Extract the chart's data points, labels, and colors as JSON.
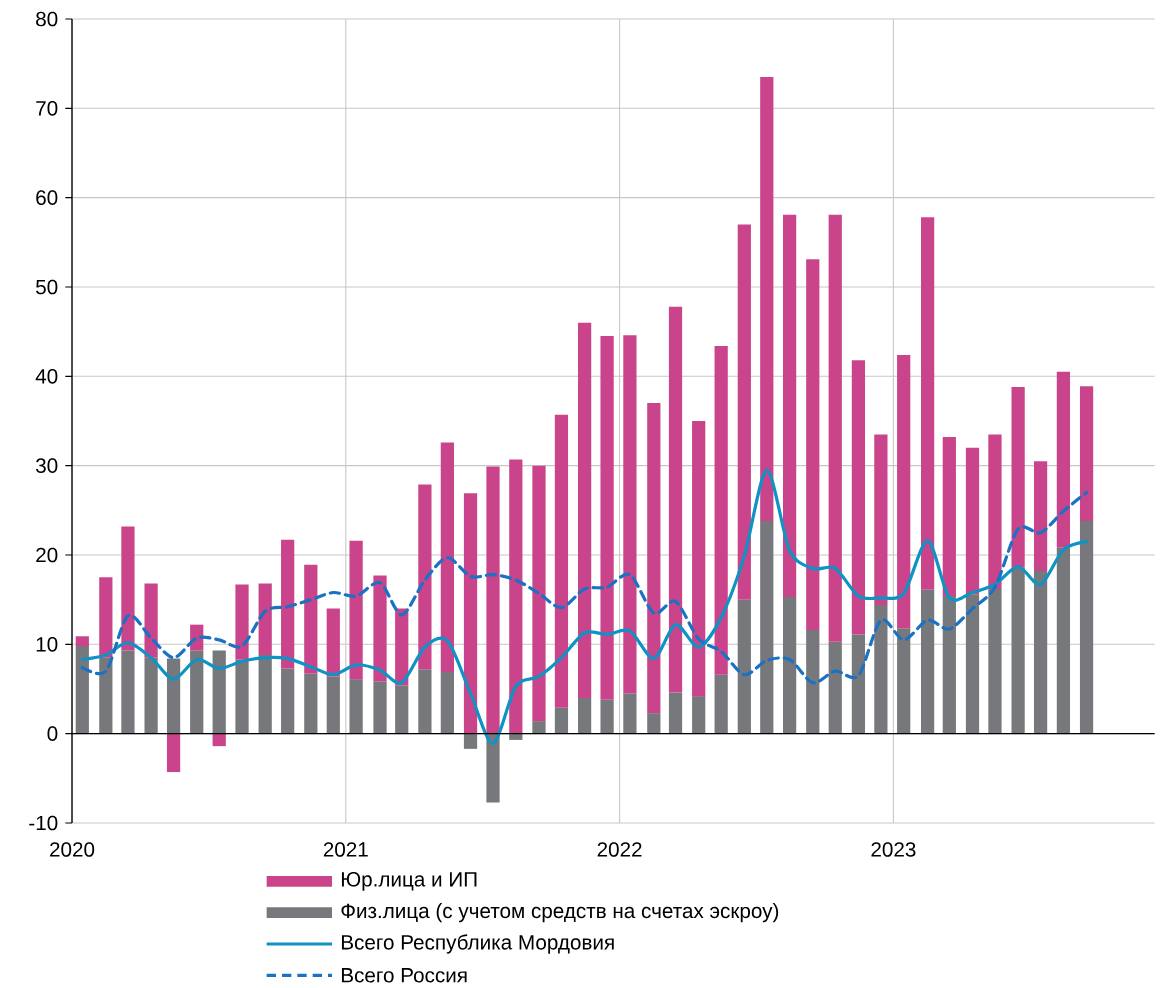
{
  "chart_data": {
    "type": "bar",
    "stacked": true,
    "grid": true,
    "legend": "bottom",
    "x": [
      "2020-01-15",
      "2020-02-15",
      "2020-03-15",
      "2020-04-15",
      "2020-05-15",
      "2020-06-15",
      "2020-07-15",
      "2020-08-15",
      "2020-09-15",
      "2020-10-15",
      "2020-11-15",
      "2020-12-15",
      "2021-01-15",
      "2021-02-15",
      "2021-03-15",
      "2021-04-15",
      "2021-05-15",
      "2021-06-15",
      "2021-07-15",
      "2021-08-15",
      "2021-09-15",
      "2021-10-15",
      "2021-11-15",
      "2021-12-15",
      "2022-01-15",
      "2022-02-15",
      "2022-03-15",
      "2022-04-15",
      "2022-05-15",
      "2022-06-15",
      "2022-07-15",
      "2022-08-15",
      "2022-09-15",
      "2022-10-15",
      "2022-11-15",
      "2022-12-15",
      "2023-01-15",
      "2023-02-15",
      "2023-03-15",
      "2023-04-15",
      "2023-05-15",
      "2023-06-15",
      "2023-07-15",
      "2023-08-15",
      "2023-09-15"
    ],
    "xlim": [
      "2020-01-01",
      "2023-12-15"
    ],
    "xticks": [
      {
        "value": "2020-01-01",
        "label": "2020"
      },
      {
        "value": "2021-01-01",
        "label": "2021"
      },
      {
        "value": "2022-01-01",
        "label": "2022"
      },
      {
        "value": "2023-01-01",
        "label": "2023"
      }
    ],
    "ylim": [
      -10,
      80
    ],
    "yticks": [
      -10,
      0,
      10,
      20,
      30,
      40,
      50,
      60,
      70,
      80
    ],
    "series": [
      {
        "name": "Физ.лица (с учетом средств на счетах эскроу)",
        "color": "#77787b",
        "values": [
          9.8,
          8.5,
          9.3,
          8.5,
          8.4,
          9.3,
          9.3,
          8.3,
          8.8,
          7.3,
          6.7,
          6.4,
          6.1,
          5.8,
          5.4,
          7.2,
          6.9,
          -1.7,
          -7.7,
          -0.7,
          1.4,
          2.9,
          4.0,
          3.8,
          4.5,
          2.3,
          4.6,
          4.2,
          6.6,
          15.0,
          23.8,
          15.3,
          11.6,
          10.3,
          11.1,
          14.4,
          11.8,
          16.1,
          15.4,
          15.6,
          16.2,
          18.6,
          18.2,
          20.8,
          23.8
        ]
      },
      {
        "name": "Юр.лица и ИП",
        "color": "#c9448a",
        "values": [
          1.1,
          9.0,
          13.9,
          8.3,
          -4.3,
          2.9,
          -1.4,
          8.4,
          8.0,
          14.4,
          12.2,
          7.6,
          15.5,
          11.9,
          8.6,
          20.7,
          25.7,
          26.9,
          29.9,
          30.7,
          28.6,
          32.8,
          42.0,
          40.7,
          40.1,
          34.7,
          43.2,
          30.8,
          36.8,
          42.0,
          49.7,
          42.8,
          41.5,
          47.8,
          30.7,
          19.1,
          30.6,
          41.7,
          17.8,
          16.4,
          17.3,
          20.2,
          12.3,
          19.7,
          15.1
        ]
      },
      {
        "name": "Всего Республика Мордовия",
        "type": "line",
        "line_style": "solid",
        "color": "#0e93c4",
        "values": [
          8.3,
          8.8,
          10.2,
          8.5,
          6.1,
          8.3,
          7.3,
          8.1,
          8.5,
          8.4,
          7.5,
          6.6,
          7.7,
          7.1,
          5.7,
          9.7,
          10.4,
          4.5,
          -1.1,
          5.3,
          6.4,
          8.5,
          11.3,
          11.1,
          11.5,
          8.4,
          12.2,
          9.7,
          13.0,
          19.9,
          29.5,
          20.5,
          18.5,
          18.5,
          15.4,
          15.2,
          15.7,
          21.6,
          15.2,
          15.8,
          16.7,
          18.7,
          16.7,
          20.6,
          21.5
        ]
      },
      {
        "name": "Всего Россия",
        "type": "line",
        "line_style": "dashed",
        "color": "#1a72c4",
        "values": [
          7.4,
          7.0,
          13.2,
          10.7,
          8.5,
          10.7,
          10.5,
          9.8,
          13.7,
          14.2,
          15.0,
          15.8,
          15.4,
          16.9,
          13.3,
          17.2,
          19.7,
          17.6,
          17.8,
          17.2,
          15.7,
          14.1,
          16.2,
          16.4,
          17.8,
          13.5,
          14.8,
          10.6,
          9.2,
          6.6,
          8.2,
          8.3,
          5.7,
          7.0,
          6.5,
          12.7,
          10.5,
          12.7,
          11.7,
          14.0,
          16.4,
          22.9,
          22.5,
          24.9,
          27.0
        ]
      }
    ]
  }
}
